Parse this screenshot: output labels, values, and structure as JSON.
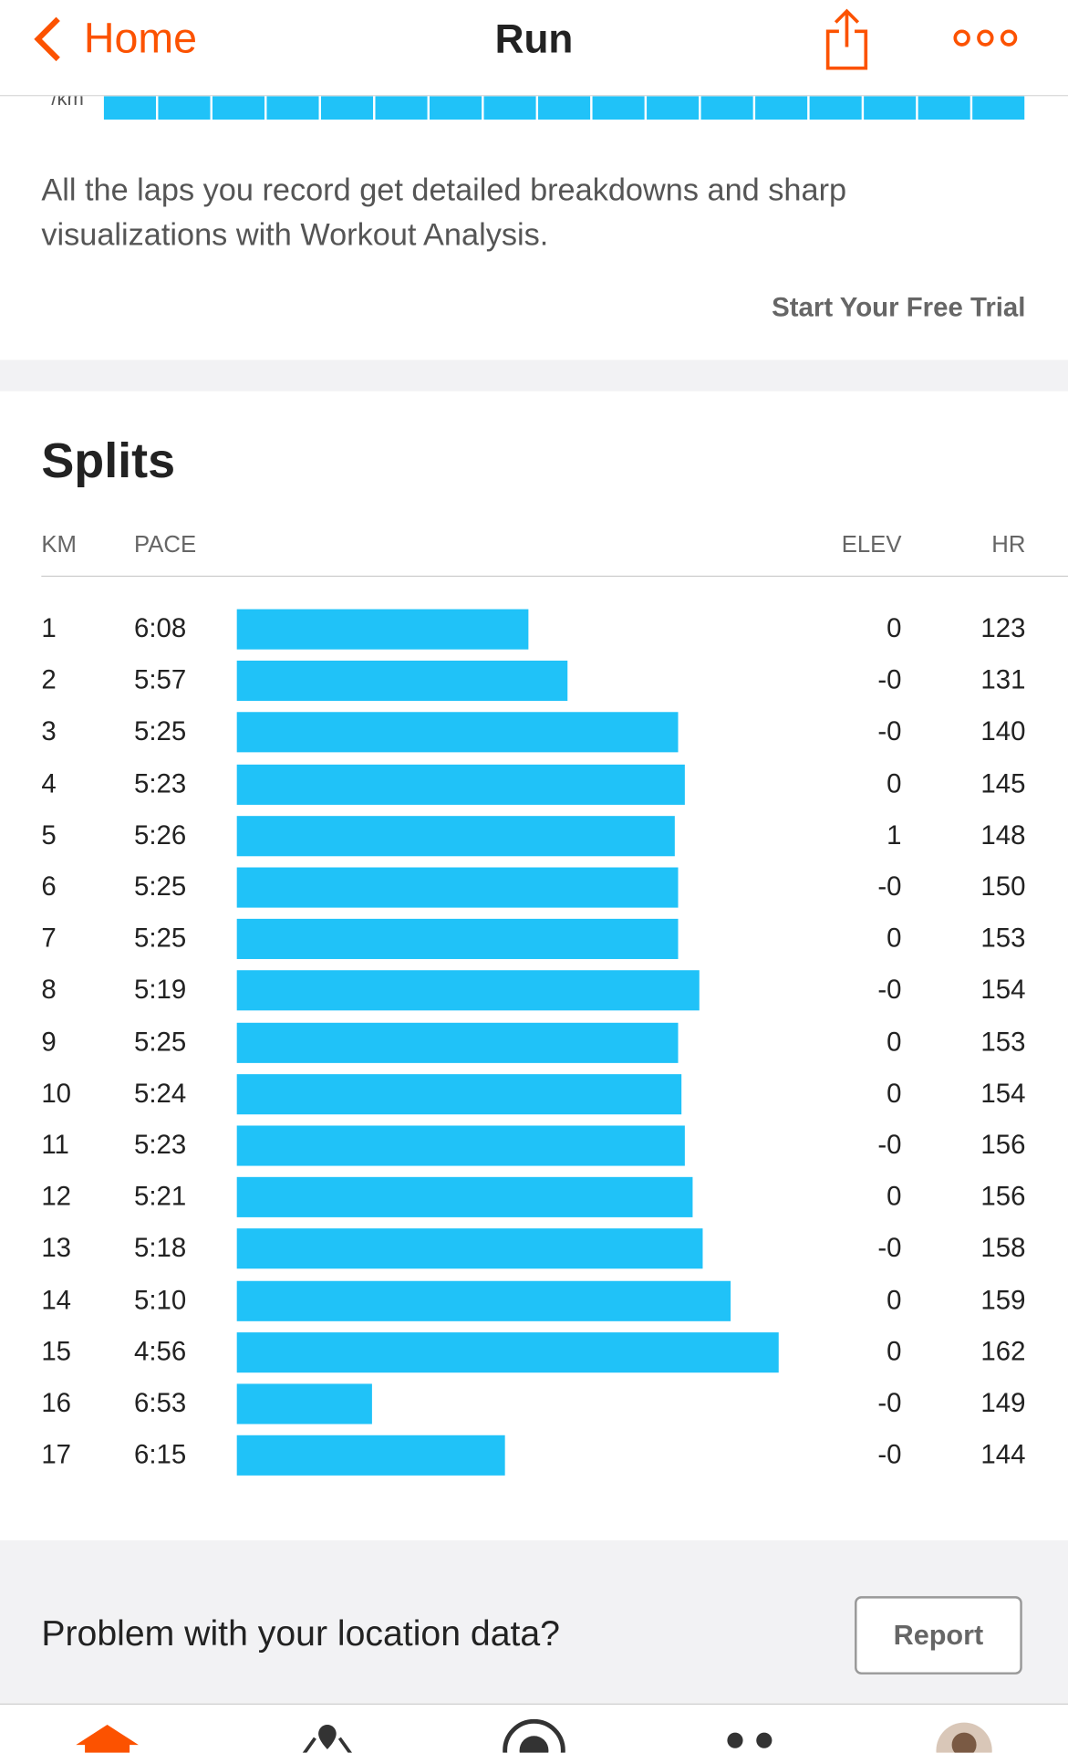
{
  "nav": {
    "back": "Home",
    "title": "Run"
  },
  "upsell": {
    "unit": "/km",
    "text": "All the laps you record get detailed breakdowns and sharp visualizations with Workout Analysis.",
    "cta": "Start Your Free Trial"
  },
  "splits": {
    "title": "Splits",
    "columns": [
      "KM",
      "PACE",
      "ELEV",
      "HR"
    ],
    "rows": [
      [
        1,
        "6:08",
        "0",
        123
      ],
      [
        2,
        "5:57",
        "-0",
        131
      ],
      [
        3,
        "5:25",
        "-0",
        140
      ],
      [
        4,
        "5:23",
        "0",
        145
      ],
      [
        5,
        "5:26",
        "1",
        148
      ],
      [
        6,
        "5:25",
        "-0",
        150
      ],
      [
        7,
        "5:25",
        "0",
        153
      ],
      [
        8,
        "5:19",
        "-0",
        154
      ],
      [
        9,
        "5:25",
        "0",
        153
      ],
      [
        10,
        "5:24",
        "0",
        154
      ],
      [
        11,
        "5:23",
        "-0",
        156
      ],
      [
        12,
        "5:21",
        "0",
        156
      ],
      [
        13,
        "5:18",
        "-0",
        158
      ],
      [
        14,
        "5:10",
        "0",
        159
      ],
      [
        15,
        "4:56",
        "0",
        162
      ],
      [
        16,
        "6:53",
        "-0",
        149
      ],
      [
        17,
        "6:15",
        "-0",
        144
      ]
    ]
  },
  "feedback": {
    "text": "Problem with your location data?",
    "button": "Report"
  }
}
